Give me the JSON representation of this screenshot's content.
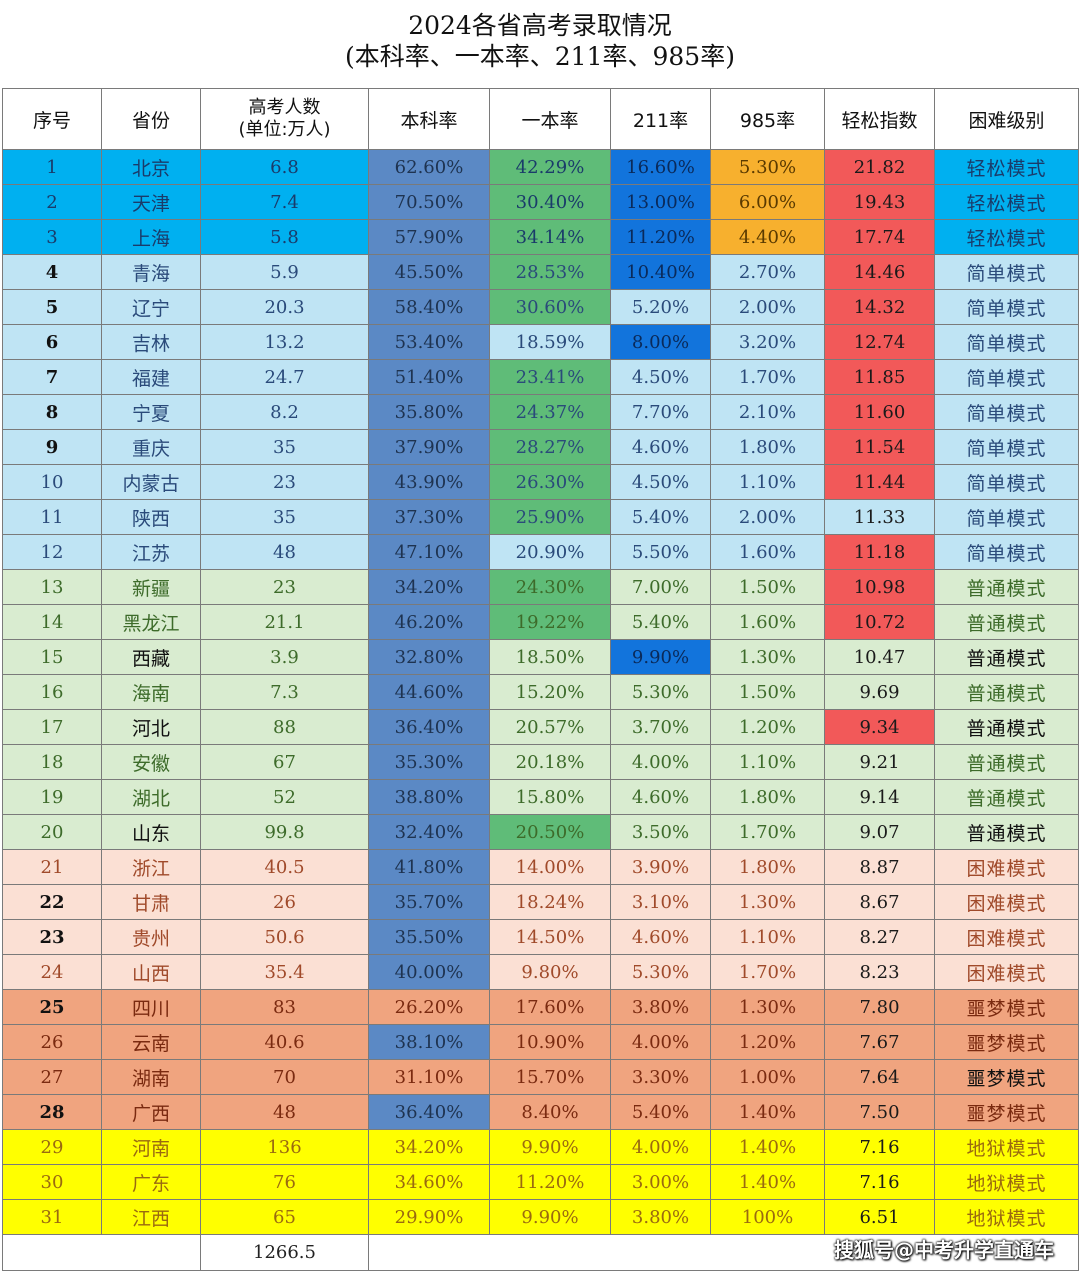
{
  "title": {
    "line1": "2024各省高考录取情况",
    "line2": "(本科率、一本率、211率、985率)"
  },
  "headers": {
    "no": "序号",
    "province": "省份",
    "exam_line1": "高考人数",
    "exam_line2": "(单位:万人)",
    "bk_rate": "本科率",
    "yb_rate": "一本率",
    "r211": "211率",
    "r985": "985率",
    "ease": "轻松指数",
    "level": "困难级别"
  },
  "colors": {
    "easy": "#00b0f0",
    "simple": "#bfe4f4",
    "normal": "#d9ecd0",
    "hard": "#fbe0d4",
    "nightmare": "#f0a47f",
    "hell": "#ffff00",
    "bk_blue": "#5b89c5",
    "green": "#5fbc78",
    "blue211": "#1274dc",
    "orange985": "#f7b02e",
    "red": "#f25959"
  },
  "rows": [
    {
      "no": "1",
      "province": "北京",
      "exam": "6.8",
      "bk": "62.60%",
      "yb": "42.29%",
      "r211": "16.60%",
      "r985": "5.30%",
      "ease": "21.82",
      "level": "轻松模式"
    },
    {
      "no": "2",
      "province": "天津",
      "exam": "7.4",
      "bk": "70.50%",
      "yb": "30.40%",
      "r211": "13.00%",
      "r985": "6.00%",
      "ease": "19.43",
      "level": "轻松模式"
    },
    {
      "no": "3",
      "province": "上海",
      "exam": "5.8",
      "bk": "57.90%",
      "yb": "34.14%",
      "r211": "11.20%",
      "r985": "4.40%",
      "ease": "17.74",
      "level": "轻松模式"
    },
    {
      "no": "4",
      "province": "青海",
      "exam": "5.9",
      "bk": "45.50%",
      "yb": "28.53%",
      "r211": "10.40%",
      "r985": "2.70%",
      "ease": "14.46",
      "level": "简单模式"
    },
    {
      "no": "5",
      "province": "辽宁",
      "exam": "20.3",
      "bk": "58.40%",
      "yb": "30.60%",
      "r211": "5.20%",
      "r985": "2.00%",
      "ease": "14.32",
      "level": "简单模式"
    },
    {
      "no": "6",
      "province": "吉林",
      "exam": "13.2",
      "bk": "53.40%",
      "yb": "18.59%",
      "r211": "8.00%",
      "r985": "3.20%",
      "ease": "12.74",
      "level": "简单模式"
    },
    {
      "no": "7",
      "province": "福建",
      "exam": "24.7",
      "bk": "51.40%",
      "yb": "23.41%",
      "r211": "4.50%",
      "r985": "1.70%",
      "ease": "11.85",
      "level": "简单模式"
    },
    {
      "no": "8",
      "province": "宁夏",
      "exam": "8.2",
      "bk": "35.80%",
      "yb": "24.37%",
      "r211": "7.70%",
      "r985": "2.10%",
      "ease": "11.60",
      "level": "简单模式"
    },
    {
      "no": "9",
      "province": "重庆",
      "exam": "35",
      "bk": "37.90%",
      "yb": "28.27%",
      "r211": "4.60%",
      "r985": "1.80%",
      "ease": "11.54",
      "level": "简单模式"
    },
    {
      "no": "10",
      "province": "内蒙古",
      "exam": "23",
      "bk": "43.90%",
      "yb": "26.30%",
      "r211": "4.50%",
      "r985": "1.10%",
      "ease": "11.44",
      "level": "简单模式"
    },
    {
      "no": "11",
      "province": "陕西",
      "exam": "35",
      "bk": "37.30%",
      "yb": "25.90%",
      "r211": "5.40%",
      "r985": "2.00%",
      "ease": "11.33",
      "level": "简单模式"
    },
    {
      "no": "12",
      "province": "江苏",
      "exam": "48",
      "bk": "47.10%",
      "yb": "20.90%",
      "r211": "5.50%",
      "r985": "1.60%",
      "ease": "11.18",
      "level": "简单模式"
    },
    {
      "no": "13",
      "province": "新疆",
      "exam": "23",
      "bk": "34.20%",
      "yb": "24.30%",
      "r211": "7.00%",
      "r985": "1.50%",
      "ease": "10.98",
      "level": "普通模式"
    },
    {
      "no": "14",
      "province": "黑龙江",
      "exam": "21.1",
      "bk": "46.20%",
      "yb": "19.22%",
      "r211": "5.40%",
      "r985": "1.60%",
      "ease": "10.72",
      "level": "普通模式"
    },
    {
      "no": "15",
      "province": "西藏",
      "exam": "3.9",
      "bk": "32.80%",
      "yb": "18.50%",
      "r211": "9.90%",
      "r985": "1.30%",
      "ease": "10.47",
      "level": "普通模式"
    },
    {
      "no": "16",
      "province": "海南",
      "exam": "7.3",
      "bk": "44.60%",
      "yb": "15.20%",
      "r211": "5.30%",
      "r985": "1.50%",
      "ease": "9.69",
      "level": "普通模式"
    },
    {
      "no": "17",
      "province": "河北",
      "exam": "88",
      "bk": "36.40%",
      "yb": "20.57%",
      "r211": "3.70%",
      "r985": "1.20%",
      "ease": "9.34",
      "level": "普通模式"
    },
    {
      "no": "18",
      "province": "安徽",
      "exam": "67",
      "bk": "35.30%",
      "yb": "20.18%",
      "r211": "4.00%",
      "r985": "1.10%",
      "ease": "9.21",
      "level": "普通模式"
    },
    {
      "no": "19",
      "province": "湖北",
      "exam": "52",
      "bk": "38.80%",
      "yb": "15.80%",
      "r211": "4.60%",
      "r985": "1.80%",
      "ease": "9.14",
      "level": "普通模式"
    },
    {
      "no": "20",
      "province": "山东",
      "exam": "99.8",
      "bk": "32.40%",
      "yb": "20.50%",
      "r211": "3.50%",
      "r985": "1.70%",
      "ease": "9.07",
      "level": "普通模式"
    },
    {
      "no": "21",
      "province": "浙江",
      "exam": "40.5",
      "bk": "41.80%",
      "yb": "14.00%",
      "r211": "3.90%",
      "r985": "1.80%",
      "ease": "8.87",
      "level": "困难模式"
    },
    {
      "no": "22",
      "province": "甘肃",
      "exam": "26",
      "bk": "35.70%",
      "yb": "18.24%",
      "r211": "3.10%",
      "r985": "1.30%",
      "ease": "8.67",
      "level": "困难模式"
    },
    {
      "no": "23",
      "province": "贵州",
      "exam": "50.6",
      "bk": "35.50%",
      "yb": "14.50%",
      "r211": "4.60%",
      "r985": "1.10%",
      "ease": "8.27",
      "level": "困难模式"
    },
    {
      "no": "24",
      "province": "山西",
      "exam": "35.4",
      "bk": "40.00%",
      "yb": "9.80%",
      "r211": "5.30%",
      "r985": "1.70%",
      "ease": "8.23",
      "level": "困难模式"
    },
    {
      "no": "25",
      "province": "四川",
      "exam": "83",
      "bk": "26.20%",
      "yb": "17.60%",
      "r211": "3.80%",
      "r985": "1.30%",
      "ease": "7.80",
      "level": "噩梦模式"
    },
    {
      "no": "26",
      "province": "云南",
      "exam": "40.6",
      "bk": "38.10%",
      "yb": "10.90%",
      "r211": "4.00%",
      "r985": "1.20%",
      "ease": "7.67",
      "level": "噩梦模式"
    },
    {
      "no": "27",
      "province": "湖南",
      "exam": "70",
      "bk": "31.10%",
      "yb": "15.70%",
      "r211": "3.30%",
      "r985": "1.00%",
      "ease": "7.64",
      "level": "噩梦模式"
    },
    {
      "no": "28",
      "province": "广西",
      "exam": "48",
      "bk": "36.40%",
      "yb": "8.40%",
      "r211": "5.40%",
      "r985": "1.40%",
      "ease": "7.50",
      "level": "噩梦模式"
    },
    {
      "no": "29",
      "province": "河南",
      "exam": "136",
      "bk": "34.20%",
      "yb": "9.90%",
      "r211": "4.00%",
      "r985": "1.40%",
      "ease": "7.16",
      "level": "地狱模式"
    },
    {
      "no": "30",
      "province": "广东",
      "exam": "76",
      "bk": "34.60%",
      "yb": "11.20%",
      "r211": "3.00%",
      "r985": "1.40%",
      "ease": "7.16",
      "level": "地狱模式"
    },
    {
      "no": "31",
      "province": "江西",
      "exam": "65",
      "bk": "29.90%",
      "yb": "9.90%",
      "r211": "3.80%",
      "r985": "100%",
      "ease": "6.51",
      "level": "地狱模式"
    }
  ],
  "total": "1266.5",
  "watermark": "搜狐号@中考升学直通车"
}
